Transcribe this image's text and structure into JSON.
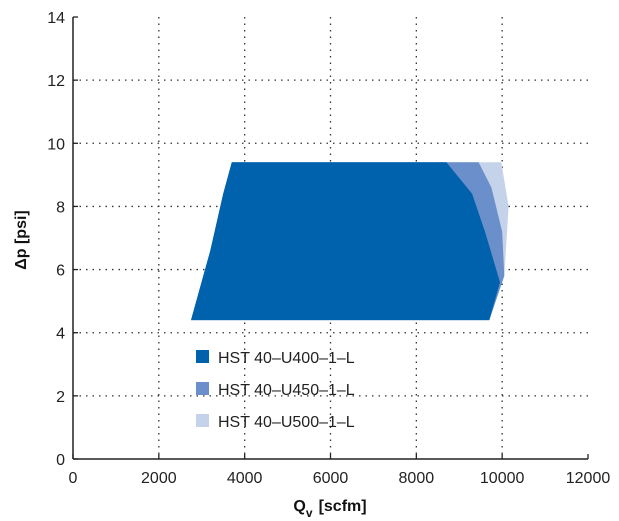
{
  "chart_data": {
    "type": "area",
    "title": "",
    "xlabel_main": "Q",
    "xlabel_sub": "v",
    "xlabel_unit": "[scfm]",
    "ylabel": "Δp [psi]",
    "xlim": [
      0,
      12000
    ],
    "ylim": [
      0,
      14
    ],
    "xticks": [
      0,
      2000,
      4000,
      6000,
      8000,
      10000,
      12000
    ],
    "yticks": [
      0,
      2,
      4,
      6,
      8,
      10,
      12,
      14
    ],
    "xtick_labels": [
      "0",
      "2000",
      "4000",
      "6000",
      "8000",
      "10000",
      "12000"
    ],
    "ytick_labels": [
      "0",
      "2",
      "4",
      "6",
      "8",
      "10",
      "12",
      "14"
    ],
    "grid": true,
    "legend_position": "lower-left",
    "series": [
      {
        "name": "HST 40–U500–1–L",
        "color": "#c5d3ea",
        "polygon": [
          [
            2750,
            4.4
          ],
          [
            3200,
            6.6
          ],
          [
            3500,
            8.4
          ],
          [
            3700,
            9.4
          ],
          [
            9980,
            9.4
          ],
          [
            10150,
            8.0
          ],
          [
            10050,
            5.8
          ],
          [
            9700,
            4.4
          ]
        ]
      },
      {
        "name": "HST 40–U450–1–L",
        "color": "#6b8fca",
        "polygon": [
          [
            2750,
            4.4
          ],
          [
            3200,
            6.6
          ],
          [
            3500,
            8.4
          ],
          [
            3700,
            9.4
          ],
          [
            9450,
            9.4
          ],
          [
            9750,
            8.6
          ],
          [
            10000,
            7.2
          ],
          [
            10050,
            5.8
          ],
          [
            9700,
            4.4
          ]
        ]
      },
      {
        "name": "HST 40–U400–1–L",
        "color": "#0062ad",
        "polygon": [
          [
            2750,
            4.4
          ],
          [
            3200,
            6.6
          ],
          [
            3500,
            8.4
          ],
          [
            3700,
            9.4
          ],
          [
            8700,
            9.4
          ],
          [
            9300,
            8.4
          ],
          [
            9600,
            7.2
          ],
          [
            9950,
            5.6
          ],
          [
            9700,
            4.4
          ]
        ]
      }
    ],
    "legend": [
      {
        "label": "HST 40–U400–1–L",
        "color": "#0062ad"
      },
      {
        "label": "HST 40–U450–1–L",
        "color": "#6b8fca"
      },
      {
        "label": "HST 40–U500–1–L",
        "color": "#c5d3ea"
      }
    ]
  }
}
